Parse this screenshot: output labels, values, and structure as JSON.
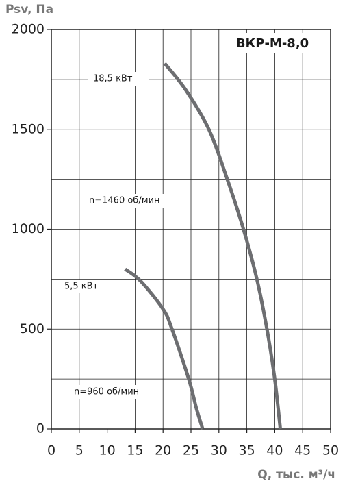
{
  "chart_data": {
    "type": "line",
    "title": "ВКР-М-8,0",
    "y_label": "Psv, Па",
    "x_label": "Q, тыс. м³/ч",
    "xlim": [
      0,
      50
    ],
    "xticks": [
      0,
      5,
      10,
      15,
      20,
      25,
      30,
      35,
      40,
      45,
      50
    ],
    "ylim": [
      0,
      2000
    ],
    "yticks": [
      0,
      500,
      1000,
      1500,
      2000
    ],
    "y_minor_grid": [
      250,
      750,
      1250,
      1750
    ],
    "grid": true,
    "series": [
      {
        "name": "18,5 кВт",
        "color": "#6d6e71",
        "x": [
          20.3,
          24,
          28.2,
          31.5,
          34.4,
          36.8,
          38.6,
          40,
          41
        ],
        "values": [
          1830,
          1700,
          1500,
          1250,
          1000,
          750,
          500,
          250,
          0
        ]
      },
      {
        "name": "5,5 кВт",
        "color": "#6d6e71",
        "x": [
          13.2,
          16,
          20,
          21.6,
          24.6,
          26,
          27.1
        ],
        "values": [
          800,
          740,
          600,
          500,
          250,
          100,
          0
        ]
      }
    ],
    "annotations": [
      "n=1460 об/мин",
      "n=960 об/мин"
    ]
  }
}
